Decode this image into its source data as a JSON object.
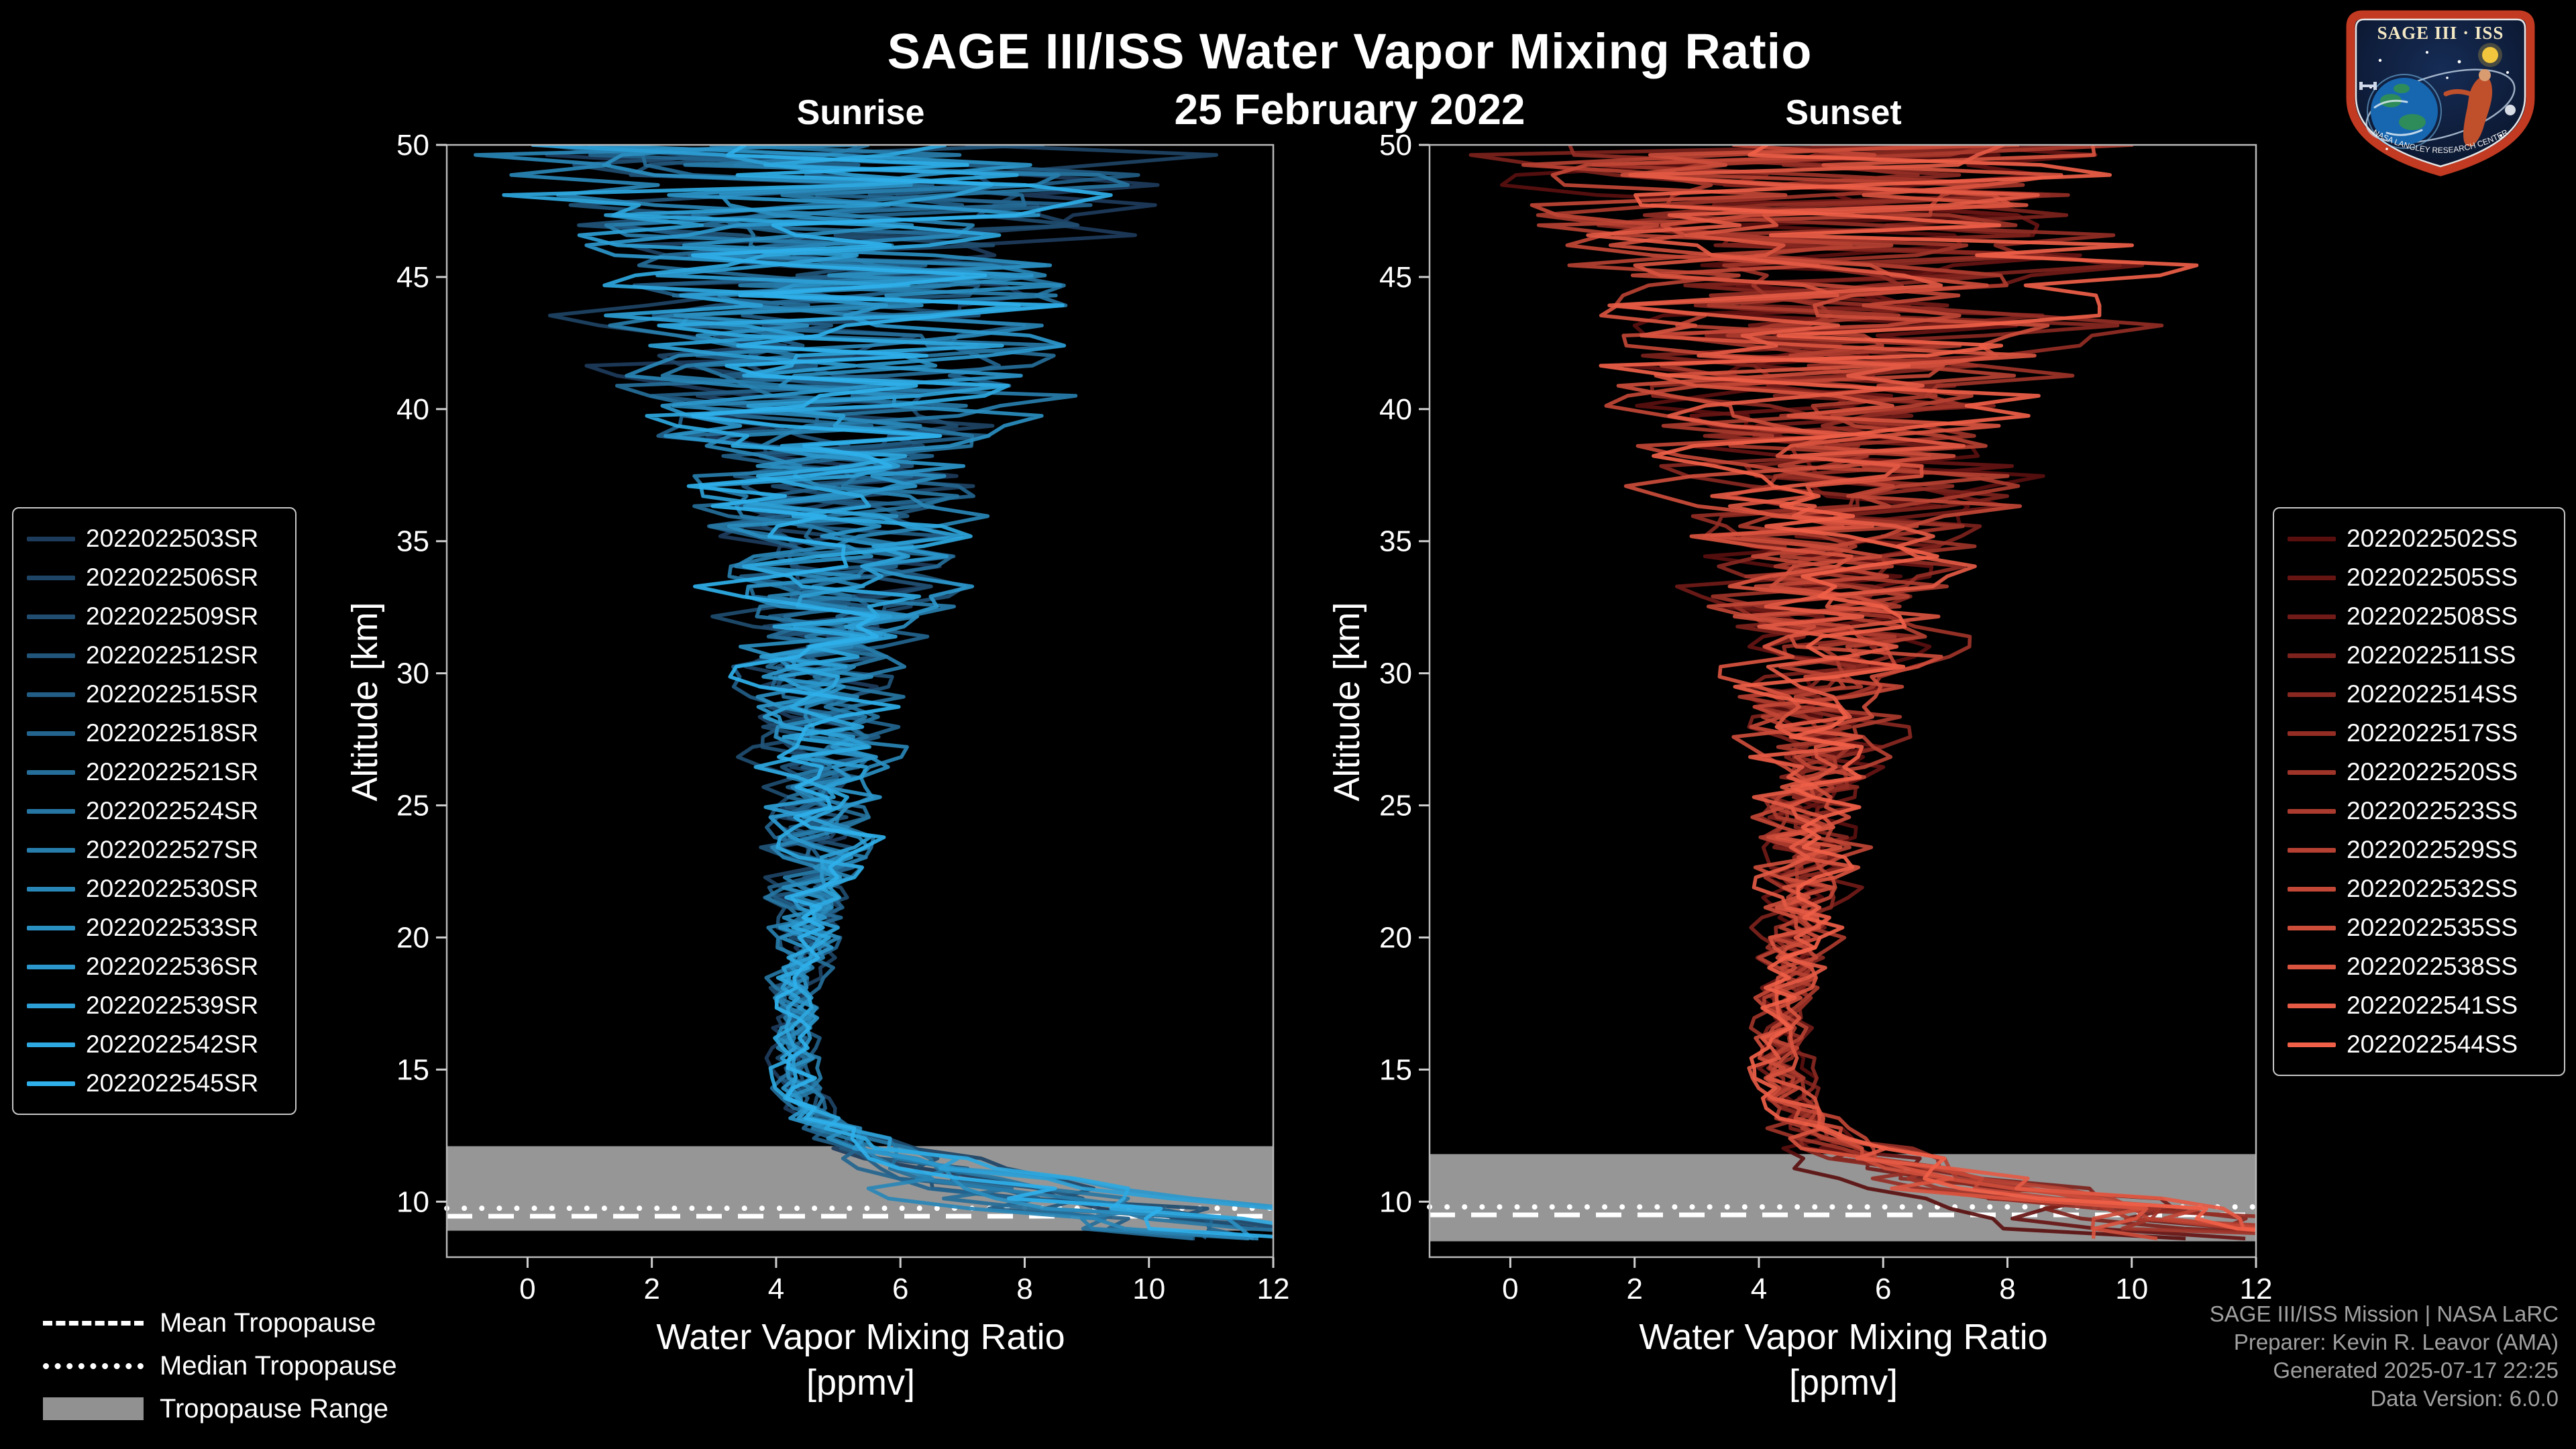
{
  "header": {
    "title": "SAGE III/ISS Water Vapor Mixing Ratio",
    "date": "25 February 2022",
    "left_panel": "Sunrise",
    "right_panel": "Sunset"
  },
  "logo": {
    "title": "SAGE III · ISS",
    "banner": "NASA LANGLEY RESEARCH CENTER"
  },
  "tropopause_legend": {
    "mean": "Mean Tropopause",
    "median": "Median Tropopause",
    "range": "Tropopause Range"
  },
  "footer": {
    "line1": "SAGE III/ISS Mission | NASA LaRC",
    "line2": "Preparer: Kevin R. Leavor (AMA)",
    "line3": "Generated 2025-07-17 22:25",
    "line4": "Data Version: 6.0.0"
  },
  "chart_data": [
    {
      "id": "sunrise",
      "type": "line",
      "title": "Sunrise",
      "xlabel": "Water Vapor Mixing Ratio",
      "xunits": "[ppmv]",
      "ylabel": "Altitude [km]",
      "xlim": [
        -1.3,
        12
      ],
      "ylim": [
        7.9,
        50
      ],
      "xticks": [
        0,
        2,
        4,
        6,
        8,
        10,
        12
      ],
      "yticks": [
        10,
        15,
        20,
        25,
        30,
        35,
        40,
        45,
        50
      ],
      "series": [
        "2022022503SR",
        "2022022506SR",
        "2022022509SR",
        "2022022512SR",
        "2022022515SR",
        "2022022518SR",
        "2022022521SR",
        "2022022524SR",
        "2022022527SR",
        "2022022530SR",
        "2022022533SR",
        "2022022536SR",
        "2022022539SR",
        "2022022542SR",
        "2022022545SR"
      ],
      "color_start": "#1d3c5c",
      "color_end": "#2fb0ea",
      "profile_alt": [
        8.6,
        9,
        10,
        11,
        12,
        13,
        14,
        16,
        18,
        20,
        25,
        30,
        35,
        40,
        45,
        50
      ],
      "profile_mean": [
        13.5,
        11.5,
        8.8,
        6.8,
        5.6,
        4.7,
        4.45,
        4.3,
        4.35,
        4.5,
        4.7,
        4.85,
        5.0,
        5.0,
        5.0,
        5.0
      ],
      "profile_noise": [
        2.5,
        2.2,
        1.8,
        1.2,
        0.8,
        0.55,
        0.45,
        0.4,
        0.45,
        0.6,
        1.0,
        1.5,
        2.2,
        3.2,
        4.5,
        5.5
      ],
      "tropopause": {
        "mean_km": 9.45,
        "median_km": 9.75,
        "range_km": [
          8.9,
          12.1
        ]
      },
      "seed": 20220225
    },
    {
      "id": "sunset",
      "type": "line",
      "title": "Sunset",
      "xlabel": "Water Vapor Mixing Ratio",
      "xunits": "[ppmv]",
      "ylabel": "Altitude [km]",
      "xlim": [
        -1.3,
        12
      ],
      "ylim": [
        7.9,
        50
      ],
      "xticks": [
        0,
        2,
        4,
        6,
        8,
        10,
        12
      ],
      "yticks": [
        10,
        15,
        20,
        25,
        30,
        35,
        40,
        45,
        50
      ],
      "series": [
        "2022022502SS",
        "2022022505SS",
        "2022022508SS",
        "2022022511SS",
        "2022022514SS",
        "2022022517SS",
        "2022022520SS",
        "2022022523SS",
        "2022022529SS",
        "2022022532SS",
        "2022022535SS",
        "2022022538SS",
        "2022022541SS",
        "2022022544SS"
      ],
      "color_start": "#5a0f0f",
      "color_end": "#f06048",
      "profile_alt": [
        8.6,
        9,
        10,
        11,
        12,
        13,
        14,
        16,
        18,
        20,
        25,
        30,
        35,
        40,
        45,
        50
      ],
      "profile_mean": [
        13.0,
        11.0,
        8.5,
        6.6,
        5.4,
        4.6,
        4.4,
        4.3,
        4.4,
        4.6,
        4.9,
        5.1,
        5.3,
        5.4,
        5.5,
        5.5
      ],
      "profile_noise": [
        2.8,
        2.4,
        1.9,
        1.3,
        0.9,
        0.6,
        0.5,
        0.45,
        0.5,
        0.65,
        1.1,
        1.6,
        2.4,
        3.4,
        4.6,
        5.6
      ],
      "tropopause": {
        "mean_km": 9.5,
        "median_km": 9.8,
        "range_km": [
          8.5,
          11.8
        ]
      },
      "seed": 20220226
    }
  ]
}
